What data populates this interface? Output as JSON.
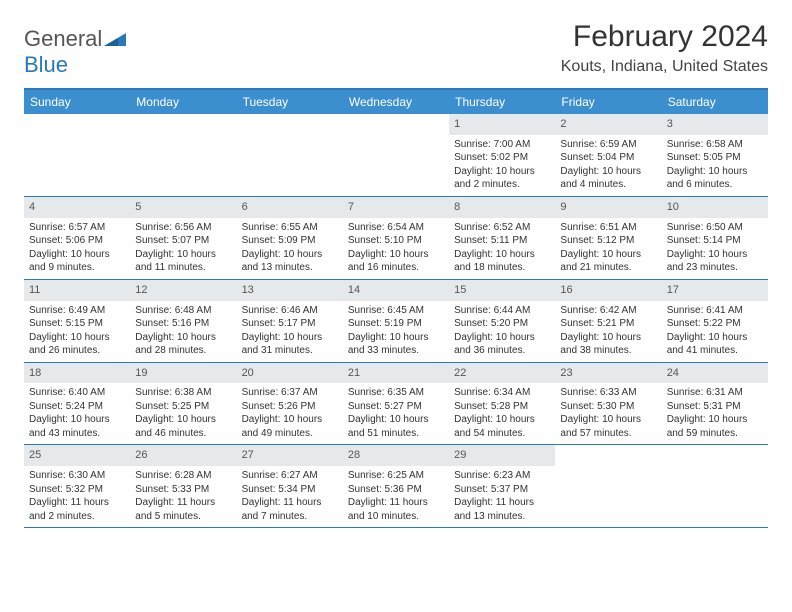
{
  "logo": {
    "word1": "General",
    "word2": "Blue"
  },
  "title": "February 2024",
  "location": "Kouts, Indiana, United States",
  "colors": {
    "header_bg": "#3b8fcf",
    "header_text": "#ffffff",
    "accent": "#2a78b8",
    "daynum_bg": "#e6e9eb",
    "text": "#333333",
    "page_bg": "#ffffff"
  },
  "typography": {
    "title_fontsize": 30,
    "location_fontsize": 16,
    "dayheader_fontsize": 12,
    "cell_fontsize": 10
  },
  "layout": {
    "columns": 7,
    "rows": 5,
    "dimensions": "792x612"
  },
  "day_headers": [
    "Sunday",
    "Monday",
    "Tuesday",
    "Wednesday",
    "Thursday",
    "Friday",
    "Saturday"
  ],
  "weeks": [
    [
      {
        "num": "",
        "sunrise": "",
        "sunset": "",
        "daylight": ""
      },
      {
        "num": "",
        "sunrise": "",
        "sunset": "",
        "daylight": ""
      },
      {
        "num": "",
        "sunrise": "",
        "sunset": "",
        "daylight": ""
      },
      {
        "num": "",
        "sunrise": "",
        "sunset": "",
        "daylight": ""
      },
      {
        "num": "1",
        "sunrise": "Sunrise: 7:00 AM",
        "sunset": "Sunset: 5:02 PM",
        "daylight": "Daylight: 10 hours and 2 minutes."
      },
      {
        "num": "2",
        "sunrise": "Sunrise: 6:59 AM",
        "sunset": "Sunset: 5:04 PM",
        "daylight": "Daylight: 10 hours and 4 minutes."
      },
      {
        "num": "3",
        "sunrise": "Sunrise: 6:58 AM",
        "sunset": "Sunset: 5:05 PM",
        "daylight": "Daylight: 10 hours and 6 minutes."
      }
    ],
    [
      {
        "num": "4",
        "sunrise": "Sunrise: 6:57 AM",
        "sunset": "Sunset: 5:06 PM",
        "daylight": "Daylight: 10 hours and 9 minutes."
      },
      {
        "num": "5",
        "sunrise": "Sunrise: 6:56 AM",
        "sunset": "Sunset: 5:07 PM",
        "daylight": "Daylight: 10 hours and 11 minutes."
      },
      {
        "num": "6",
        "sunrise": "Sunrise: 6:55 AM",
        "sunset": "Sunset: 5:09 PM",
        "daylight": "Daylight: 10 hours and 13 minutes."
      },
      {
        "num": "7",
        "sunrise": "Sunrise: 6:54 AM",
        "sunset": "Sunset: 5:10 PM",
        "daylight": "Daylight: 10 hours and 16 minutes."
      },
      {
        "num": "8",
        "sunrise": "Sunrise: 6:52 AM",
        "sunset": "Sunset: 5:11 PM",
        "daylight": "Daylight: 10 hours and 18 minutes."
      },
      {
        "num": "9",
        "sunrise": "Sunrise: 6:51 AM",
        "sunset": "Sunset: 5:12 PM",
        "daylight": "Daylight: 10 hours and 21 minutes."
      },
      {
        "num": "10",
        "sunrise": "Sunrise: 6:50 AM",
        "sunset": "Sunset: 5:14 PM",
        "daylight": "Daylight: 10 hours and 23 minutes."
      }
    ],
    [
      {
        "num": "11",
        "sunrise": "Sunrise: 6:49 AM",
        "sunset": "Sunset: 5:15 PM",
        "daylight": "Daylight: 10 hours and 26 minutes."
      },
      {
        "num": "12",
        "sunrise": "Sunrise: 6:48 AM",
        "sunset": "Sunset: 5:16 PM",
        "daylight": "Daylight: 10 hours and 28 minutes."
      },
      {
        "num": "13",
        "sunrise": "Sunrise: 6:46 AM",
        "sunset": "Sunset: 5:17 PM",
        "daylight": "Daylight: 10 hours and 31 minutes."
      },
      {
        "num": "14",
        "sunrise": "Sunrise: 6:45 AM",
        "sunset": "Sunset: 5:19 PM",
        "daylight": "Daylight: 10 hours and 33 minutes."
      },
      {
        "num": "15",
        "sunrise": "Sunrise: 6:44 AM",
        "sunset": "Sunset: 5:20 PM",
        "daylight": "Daylight: 10 hours and 36 minutes."
      },
      {
        "num": "16",
        "sunrise": "Sunrise: 6:42 AM",
        "sunset": "Sunset: 5:21 PM",
        "daylight": "Daylight: 10 hours and 38 minutes."
      },
      {
        "num": "17",
        "sunrise": "Sunrise: 6:41 AM",
        "sunset": "Sunset: 5:22 PM",
        "daylight": "Daylight: 10 hours and 41 minutes."
      }
    ],
    [
      {
        "num": "18",
        "sunrise": "Sunrise: 6:40 AM",
        "sunset": "Sunset: 5:24 PM",
        "daylight": "Daylight: 10 hours and 43 minutes."
      },
      {
        "num": "19",
        "sunrise": "Sunrise: 6:38 AM",
        "sunset": "Sunset: 5:25 PM",
        "daylight": "Daylight: 10 hours and 46 minutes."
      },
      {
        "num": "20",
        "sunrise": "Sunrise: 6:37 AM",
        "sunset": "Sunset: 5:26 PM",
        "daylight": "Daylight: 10 hours and 49 minutes."
      },
      {
        "num": "21",
        "sunrise": "Sunrise: 6:35 AM",
        "sunset": "Sunset: 5:27 PM",
        "daylight": "Daylight: 10 hours and 51 minutes."
      },
      {
        "num": "22",
        "sunrise": "Sunrise: 6:34 AM",
        "sunset": "Sunset: 5:28 PM",
        "daylight": "Daylight: 10 hours and 54 minutes."
      },
      {
        "num": "23",
        "sunrise": "Sunrise: 6:33 AM",
        "sunset": "Sunset: 5:30 PM",
        "daylight": "Daylight: 10 hours and 57 minutes."
      },
      {
        "num": "24",
        "sunrise": "Sunrise: 6:31 AM",
        "sunset": "Sunset: 5:31 PM",
        "daylight": "Daylight: 10 hours and 59 minutes."
      }
    ],
    [
      {
        "num": "25",
        "sunrise": "Sunrise: 6:30 AM",
        "sunset": "Sunset: 5:32 PM",
        "daylight": "Daylight: 11 hours and 2 minutes."
      },
      {
        "num": "26",
        "sunrise": "Sunrise: 6:28 AM",
        "sunset": "Sunset: 5:33 PM",
        "daylight": "Daylight: 11 hours and 5 minutes."
      },
      {
        "num": "27",
        "sunrise": "Sunrise: 6:27 AM",
        "sunset": "Sunset: 5:34 PM",
        "daylight": "Daylight: 11 hours and 7 minutes."
      },
      {
        "num": "28",
        "sunrise": "Sunrise: 6:25 AM",
        "sunset": "Sunset: 5:36 PM",
        "daylight": "Daylight: 11 hours and 10 minutes."
      },
      {
        "num": "29",
        "sunrise": "Sunrise: 6:23 AM",
        "sunset": "Sunset: 5:37 PM",
        "daylight": "Daylight: 11 hours and 13 minutes."
      },
      {
        "num": "",
        "sunrise": "",
        "sunset": "",
        "daylight": ""
      },
      {
        "num": "",
        "sunrise": "",
        "sunset": "",
        "daylight": ""
      }
    ]
  ]
}
